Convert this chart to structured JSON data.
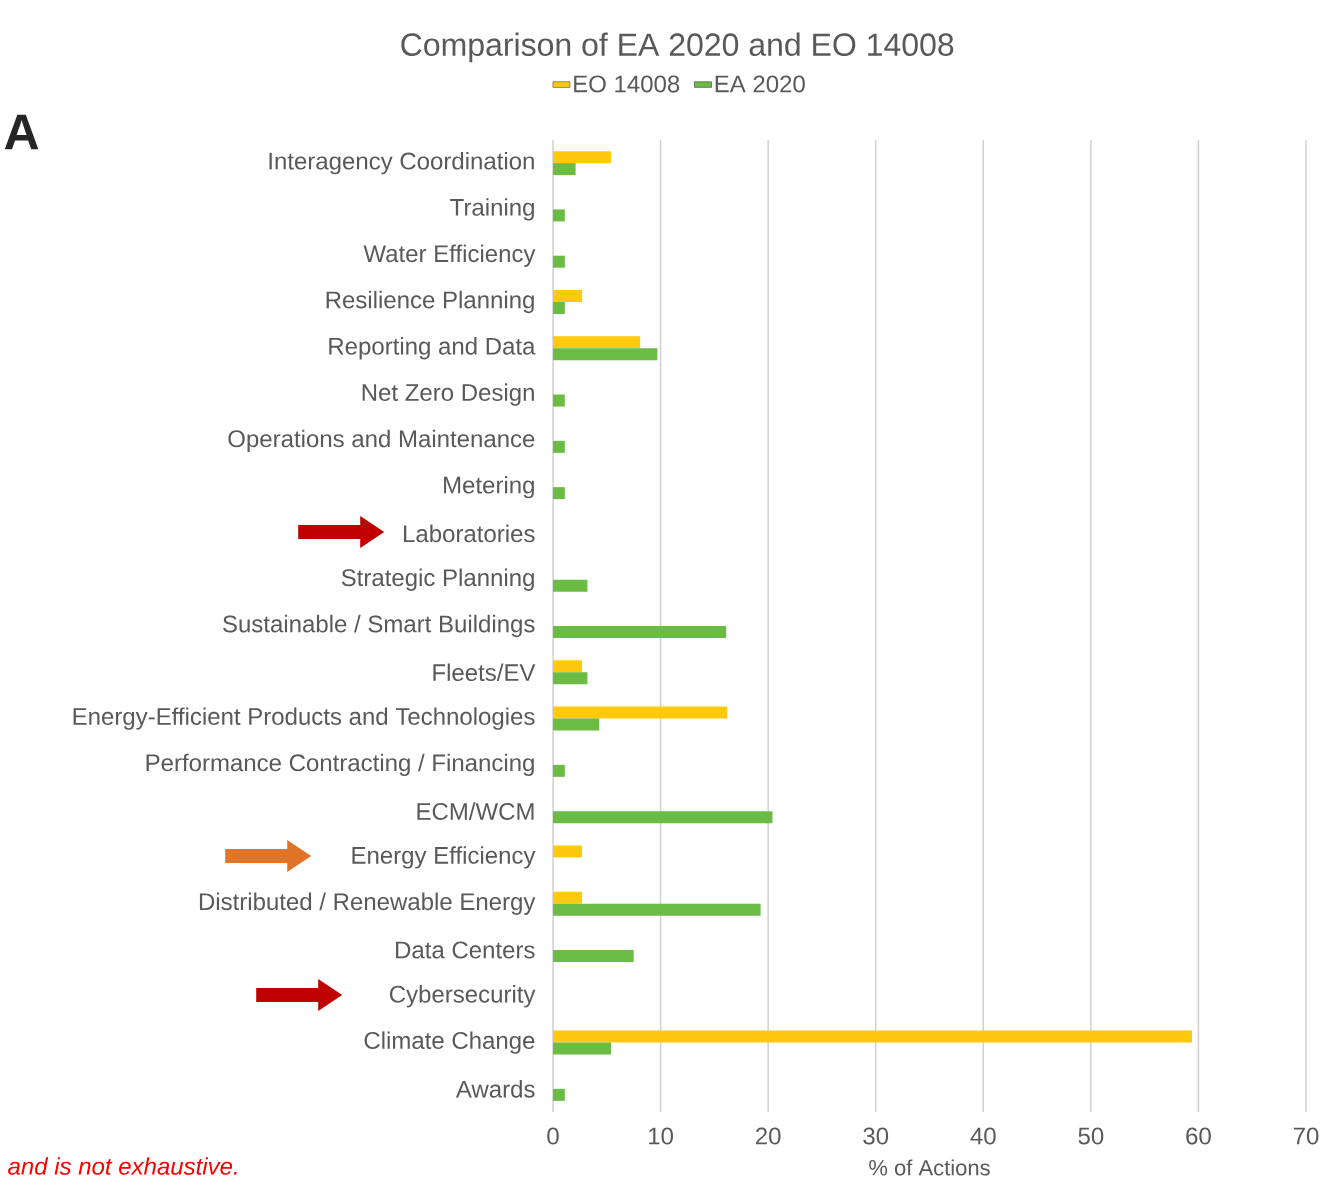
{
  "chart_data": {
    "type": "bar",
    "orientation": "horizontal",
    "title": "Comparison of EA 2020 and EO 14008",
    "xlabel": "% of Actions",
    "categories": [
      "Interagency Coordination",
      "Training",
      "Water Efficiency",
      "Resilience Planning",
      "Reporting and Data",
      "Net Zero Design",
      "Operations and Maintenance",
      "Metering",
      "Laboratories",
      "Strategic Planning",
      "Sustainable / Smart Buildings",
      "Fleets/EV",
      "Energy-Efficient Products and Technologies",
      "Performance Contracting / Financing",
      "ECM/WCM",
      "Energy Efficiency",
      "Distributed / Renewable Energy",
      "Data Centers",
      "Cybersecurity",
      "Climate Change",
      "Awards"
    ],
    "series": [
      {
        "name": "EO 14008",
        "color": "#ffc90e",
        "values": [
          5.4,
          null,
          null,
          2.7,
          8.1,
          null,
          null,
          null,
          null,
          null,
          null,
          2.7,
          16.2,
          null,
          null,
          2.7,
          2.7,
          null,
          null,
          59.4,
          null
        ]
      },
      {
        "name": "EA 2020",
        "color": "#6abc45",
        "values": [
          2.1,
          1.1,
          1.1,
          1.1,
          9.7,
          1.1,
          1.1,
          1.1,
          null,
          3.2,
          16.1,
          3.2,
          4.3,
          1.1,
          20.4,
          null,
          19.3,
          7.5,
          null,
          5.4,
          1.1
        ]
      }
    ],
    "xlim": [
      0,
      70
    ],
    "xticks": [
      0,
      10,
      20,
      30,
      40,
      50,
      60,
      70
    ],
    "grid": "x",
    "legend": "top",
    "annotations": [
      "A",
      "and is not exhaustive."
    ]
  }
}
